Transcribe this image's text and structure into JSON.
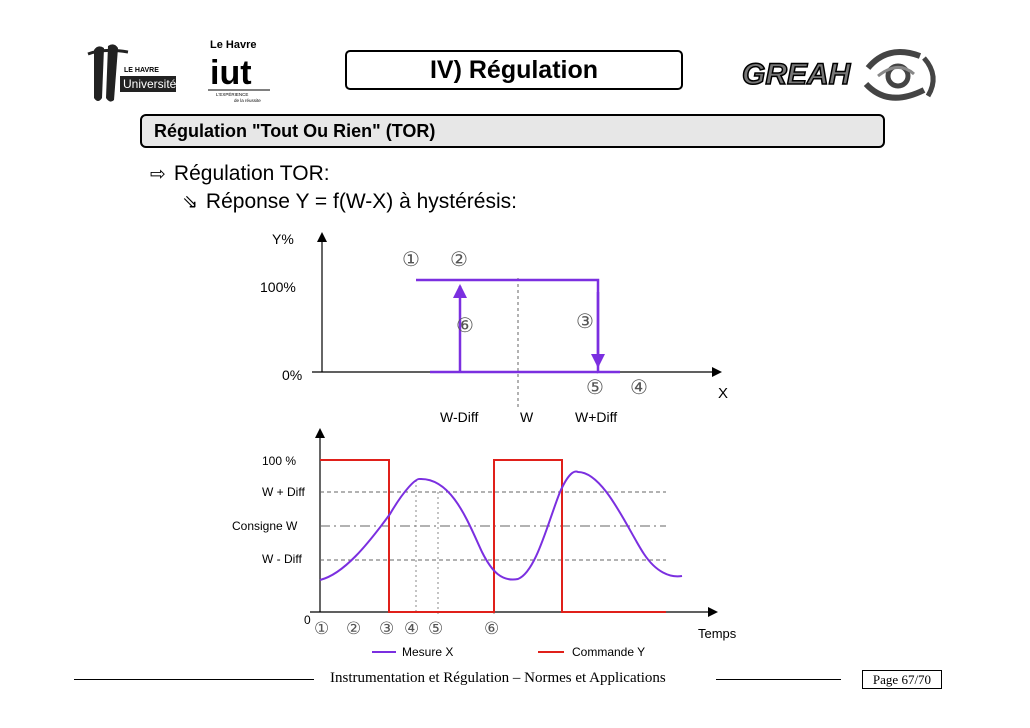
{
  "header": {
    "title": "IV) Régulation",
    "logo_univ": {
      "top": "LE HAVRE",
      "name": "Université"
    },
    "logo_iut": {
      "top": "Le Havre",
      "name": "iut",
      "tagline": "L'EXPÉRIENCE",
      "sub": "de la réussite"
    },
    "logo_greah": "GREAH"
  },
  "section_title": "Régulation \"Tout Ou Rien\" (TOR)",
  "bullets": {
    "level1": {
      "icon": "outline-arrow-icon",
      "text": "Régulation TOR:"
    },
    "level2": {
      "icon": "curved-arrow-icon",
      "text": "Réponse Y = f(W-X) à hystérésis:"
    }
  },
  "top_graph": {
    "y_label": "Y%",
    "y_100": "100%",
    "y_0": "0%",
    "x_label": "X",
    "x_ticks": [
      "W-Diff",
      "W",
      "W+Diff"
    ],
    "markers": [
      "①",
      "②",
      "③",
      "④",
      "⑤",
      "⑥"
    ]
  },
  "bottom_graph": {
    "y_labels": [
      "100 %",
      "W + Diff",
      "Consigne W",
      "W - Diff",
      "0"
    ],
    "x_label": "Temps",
    "markers": [
      "①",
      "②",
      "③",
      "④",
      "⑤",
      "⑥"
    ],
    "legend": [
      {
        "label": "Mesure X",
        "color": "#7b2fe0"
      },
      {
        "label": "Commande Y",
        "color": "#e0201a"
      }
    ]
  },
  "colors": {
    "purple": "#7b2fe0",
    "red": "#e0201a",
    "section_bg": "#e7e7e7"
  },
  "footer": {
    "text": "Instrumentation et Régulation – Normes et Applications",
    "page": "Page 67/70"
  }
}
